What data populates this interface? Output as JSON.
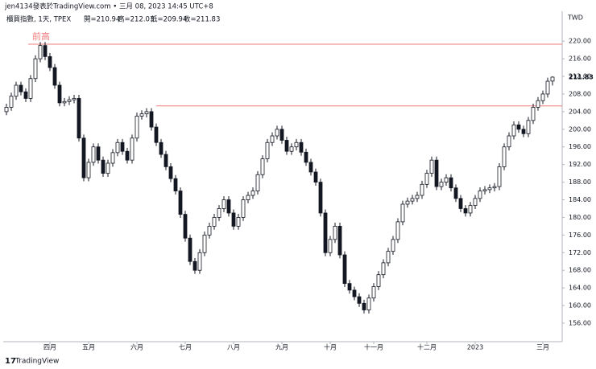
{
  "header": {
    "author_line": "jen4134發表於TradingView.com • 三月 08, 2023 14:45 UTC+8",
    "symbol": "櫃買指數, 1天, TPEX",
    "ohlc": [
      "開=210.94",
      "高=212.03",
      "低=209.94",
      "收=211.83"
    ]
  },
  "footer": {
    "brand": "TradingView"
  },
  "chart_data": {
    "type": "candlestick",
    "currency": "TWD",
    "annotation": "前高",
    "levels": [
      219.3,
      205.3
    ],
    "level_color": "#f07c7c",
    "up_color": "#ffffff",
    "down_color": "#131722",
    "xlim": [
      -0.5,
      115
    ],
    "xticks": [
      {
        "value": 9,
        "label": "四月"
      },
      {
        "value": 17,
        "label": "五月"
      },
      {
        "value": 27,
        "label": "六月"
      },
      {
        "value": 37,
        "label": "七月"
      },
      {
        "value": 47,
        "label": "八月"
      },
      {
        "value": 57,
        "label": "九月"
      },
      {
        "value": 67,
        "label": "十月"
      },
      {
        "value": 76,
        "label": "十一月"
      },
      {
        "value": 87,
        "label": "十二月"
      },
      {
        "value": 97,
        "label": "2023"
      },
      {
        "value": 111,
        "label": "三月"
      }
    ],
    "ylim": [
      151.8,
      226.6
    ],
    "yticks": [
      {
        "value": 156,
        "label": "156.00"
      },
      {
        "value": 160,
        "label": "160.00"
      },
      {
        "value": 164,
        "label": "164.00"
      },
      {
        "value": 168,
        "label": "168.00"
      },
      {
        "value": 172,
        "label": "172.00"
      },
      {
        "value": 176,
        "label": "176.00"
      },
      {
        "value": 180,
        "label": "180.00"
      },
      {
        "value": 184,
        "label": "184.00"
      },
      {
        "value": 188,
        "label": "188.00"
      },
      {
        "value": 192,
        "label": "192.00"
      },
      {
        "value": 196,
        "label": "196.00"
      },
      {
        "value": 200,
        "label": "200.00"
      },
      {
        "value": 204,
        "label": "204.00"
      },
      {
        "value": 208,
        "label": "208.00"
      },
      {
        "value": 212,
        "label": "212.00"
      },
      {
        "value": 216,
        "label": "216.00"
      },
      {
        "value": 220,
        "label": "220.00"
      }
    ],
    "open": [
      204,
      205,
      207.5,
      210,
      208.5,
      207,
      211.5,
      216,
      219,
      216.5,
      214,
      210,
      206,
      206.3,
      206.7,
      207,
      198,
      189,
      192.5,
      196,
      193,
      190,
      192.3,
      194.7,
      197,
      195,
      193,
      198,
      203,
      203.5,
      204,
      200.5,
      197,
      194.3,
      191.5,
      188.8,
      186,
      180.7,
      175.3,
      170,
      168,
      172,
      176,
      178,
      180,
      182,
      184,
      181,
      178,
      180,
      184,
      185,
      186,
      189.7,
      193.3,
      197,
      198.5,
      200,
      197.5,
      195,
      196,
      197,
      194.8,
      192.5,
      190.3,
      188,
      181,
      172,
      175,
      178,
      171.5,
      165,
      163.5,
      162,
      160.5,
      159,
      161.7,
      164.3,
      167,
      169.7,
      172.3,
      175,
      179,
      183,
      183.7,
      184.3,
      185,
      187.5,
      190,
      193,
      187,
      188,
      189,
      186.7,
      184.3,
      182,
      181,
      182.7,
      184.3,
      186,
      186.3,
      186.7,
      187,
      191.5,
      196,
      198.5,
      201,
      200,
      199,
      202,
      205,
      206.5,
      208,
      210.94
    ],
    "high": [
      205.8,
      208.3,
      210.8,
      210.8,
      209.3,
      212.3,
      216.8,
      219.8,
      219.8,
      217.3,
      214.8,
      210.8,
      207.1,
      207.5,
      207.8,
      207.8,
      198.8,
      193.3,
      196.8,
      196.8,
      193.8,
      193.1,
      195.5,
      197.8,
      197.8,
      195.8,
      198.8,
      203.8,
      204.3,
      204.8,
      204.8,
      201.3,
      197.8,
      195.1,
      192.3,
      189.6,
      186.8,
      181.5,
      176.1,
      170.8,
      172.8,
      176.8,
      178.8,
      180.8,
      182.8,
      184.8,
      184.8,
      181.8,
      180.8,
      184.8,
      185.8,
      186.8,
      190.5,
      194.1,
      197.8,
      199.3,
      200.8,
      200.8,
      198.3,
      196.8,
      197.8,
      197.8,
      195.6,
      193.3,
      191.1,
      188.8,
      181.8,
      175.8,
      178.8,
      178.8,
      172.3,
      165.8,
      164.3,
      162.8,
      161.3,
      162.5,
      165.1,
      167.8,
      170.5,
      173.1,
      175.8,
      179.8,
      183.8,
      184.5,
      185.1,
      185.8,
      188.3,
      190.8,
      193.8,
      193.8,
      188.8,
      189.8,
      189.8,
      187.5,
      185.1,
      182.8,
      183.5,
      185.1,
      186.8,
      187.1,
      187.5,
      187.8,
      192.3,
      196.8,
      199.3,
      201.8,
      201.8,
      200.8,
      202.8,
      205.8,
      207.3,
      208.8,
      211.7,
      212.03
    ],
    "low": [
      203.2,
      204.2,
      206.7,
      207.7,
      206.2,
      206.2,
      210.7,
      215.2,
      215.7,
      213.2,
      209.2,
      205.2,
      205.2,
      205.5,
      205.9,
      197.2,
      188.2,
      188.2,
      191.7,
      192.2,
      189.2,
      189.2,
      191.5,
      193.9,
      194.2,
      192.2,
      192.2,
      197.2,
      202.2,
      202.7,
      199.7,
      196.2,
      193.5,
      190.7,
      188,
      185.2,
      179.9,
      174.5,
      169.2,
      167.2,
      167.2,
      171.2,
      175.2,
      177.2,
      179.2,
      181.2,
      180.2,
      177.2,
      177.2,
      179.2,
      183.2,
      184.2,
      185.2,
      188.9,
      192.5,
      196.2,
      197.7,
      196.7,
      194.2,
      194.2,
      195.2,
      194,
      191.7,
      189.5,
      187.2,
      180.2,
      171.2,
      171.2,
      174.2,
      170.7,
      164.2,
      162.7,
      161.2,
      159.7,
      158.2,
      158.2,
      160.9,
      163.5,
      166.2,
      168.9,
      171.5,
      174.2,
      178.2,
      182.2,
      182.9,
      183.5,
      184.2,
      186.7,
      189.2,
      186.2,
      186.2,
      187.2,
      185.9,
      183.5,
      181.2,
      180.2,
      180.2,
      181.9,
      183.5,
      185.2,
      185.5,
      185.9,
      186.2,
      190.7,
      195.2,
      197.7,
      199.2,
      198.2,
      198.2,
      201.2,
      204.2,
      205.7,
      207.2,
      209.94
    ],
    "close": [
      205,
      207.5,
      210,
      208.5,
      207,
      211.5,
      216,
      219,
      216.5,
      214,
      210,
      206,
      206.3,
      206.7,
      207,
      198,
      189,
      192.5,
      196,
      193,
      190,
      192.3,
      194.7,
      197,
      195,
      193,
      198,
      203,
      203.5,
      204,
      200.5,
      197,
      194.3,
      191.5,
      188.8,
      186,
      180.7,
      175.3,
      170,
      168,
      172,
      176,
      178,
      180,
      182,
      184,
      181,
      178,
      180,
      184,
      185,
      186,
      189.7,
      193.3,
      197,
      198.5,
      200,
      197.5,
      195,
      196,
      197,
      194.8,
      192.5,
      190.3,
      188,
      181,
      172,
      175,
      178,
      171.5,
      165,
      163.5,
      162,
      160.5,
      159,
      161.7,
      164.3,
      167,
      169.7,
      172.3,
      175,
      179,
      183,
      183.7,
      184.3,
      185,
      187.5,
      190,
      193,
      187,
      188,
      189,
      186.7,
      184.3,
      182,
      181,
      182.7,
      184.3,
      186,
      186.3,
      186.7,
      187,
      191.5,
      196,
      198.5,
      201,
      200,
      199,
      202,
      205,
      206.5,
      208,
      210.9,
      211.83
    ]
  }
}
